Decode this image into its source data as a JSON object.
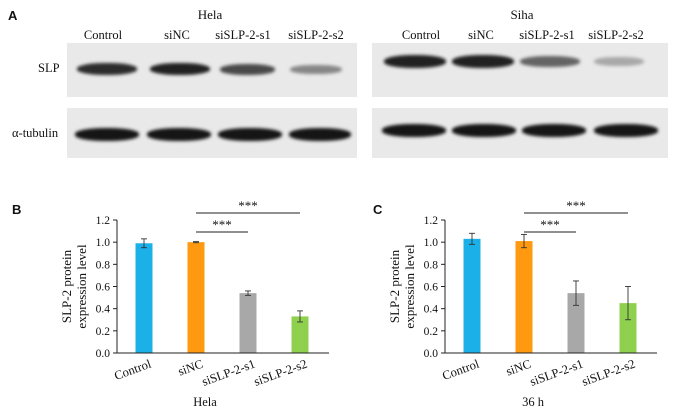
{
  "figure": {
    "panel_a": {
      "letter": "A",
      "blots": [
        {
          "cell_line": "Hela",
          "lanes": [
            "Control",
            "siNC",
            "siSLP-2-s1",
            "siSLP-2-s2"
          ],
          "rows": [
            {
              "label": "SLP",
              "band_intensity": [
                0.85,
                0.9,
                0.72,
                0.45
              ]
            },
            {
              "label": "α-tubulin",
              "band_intensity": [
                0.95,
                0.95,
                0.95,
                0.95
              ]
            }
          ]
        },
        {
          "cell_line": "Siha",
          "lanes": [
            "Control",
            "siNC",
            "siSLP-2-s1",
            "siSLP-2-s2"
          ],
          "rows": [
            {
              "label": "SLP",
              "band_intensity": [
                0.9,
                0.9,
                0.6,
                0.3
              ]
            },
            {
              "label": "α-tubulin",
              "band_intensity": [
                0.95,
                0.95,
                0.95,
                0.95
              ]
            }
          ]
        }
      ]
    },
    "panel_b": {
      "letter": "B"
    },
    "panel_c": {
      "letter": "C"
    }
  },
  "chart_data": [
    {
      "type": "bar",
      "categories": [
        "Control",
        "siNC",
        "siSLP-2-s1",
        "siSLP-2-s2"
      ],
      "values": [
        0.99,
        1.0,
        0.54,
        0.33
      ],
      "errors": [
        0.04,
        0.005,
        0.02,
        0.05
      ],
      "colors": [
        "#1cb0e8",
        "#ff9a10",
        "#a8a8a8",
        "#8fd14f"
      ],
      "xlabel": "Hela",
      "ylabel": "SLP-2 protein\nexpression level",
      "ylim": [
        0,
        1.2
      ],
      "yticks": [
        "0.0",
        "0.2",
        "0.4",
        "0.6",
        "0.8",
        "1.0",
        "1.2"
      ],
      "grid": false,
      "annotations": [
        {
          "text": "***",
          "from": "siNC",
          "to": "siSLP-2-s1"
        },
        {
          "text": "***",
          "from": "siNC",
          "to": "siSLP-2-s2"
        }
      ]
    },
    {
      "type": "bar",
      "categories": [
        "Control",
        "siNC",
        "siSLP-2-s1",
        "siSLP-2-s2"
      ],
      "values": [
        1.03,
        1.01,
        0.54,
        0.45
      ],
      "errors": [
        0.05,
        0.06,
        0.11,
        0.15
      ],
      "colors": [
        "#1cb0e8",
        "#ff9a10",
        "#a8a8a8",
        "#8fd14f"
      ],
      "xlabel": "36 h",
      "ylabel": "SLP-2 protein\nexpression level",
      "ylim": [
        0,
        1.2
      ],
      "yticks": [
        "0.0",
        "0.2",
        "0.4",
        "0.6",
        "0.8",
        "1.0",
        "1.2"
      ],
      "grid": false,
      "annotations": [
        {
          "text": "***",
          "from": "siNC",
          "to": "siSLP-2-s1"
        },
        {
          "text": "***",
          "from": "siNC",
          "to": "siSLP-2-s2"
        }
      ]
    }
  ]
}
